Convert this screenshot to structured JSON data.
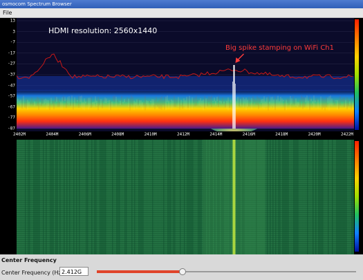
{
  "window": {
    "title": "osmocom Spectrum Browser"
  },
  "menu": {
    "file": "File"
  },
  "spectrum": {
    "y_ticks": [
      "13",
      "3",
      "-7",
      "-17",
      "-27",
      "-37",
      "-47",
      "-57",
      "-67",
      "-77",
      "-87"
    ],
    "y_range": [
      -87,
      13
    ],
    "x_ticks": [
      "2402M",
      "2404M",
      "2406M",
      "2408M",
      "2410M",
      "2412M",
      "2414M",
      "2416M",
      "2418M",
      "2420M",
      "2422M"
    ],
    "x_range_mhz": [
      2402,
      2422
    ],
    "spike_freq_mhz": 2415.1
  },
  "annotations": {
    "resolution": "HDMI resolution: 2560x1440",
    "spike": "Big spike stamping on WiFi Ch1",
    "spike_color": "#ff3b3b"
  },
  "controls": {
    "section_title": "Center Frequency",
    "freq_label": "Center Frequency (Hz):",
    "freq_value": "2.412G",
    "slider_level": 0.33,
    "slider_accent": "#e0442a"
  }
}
